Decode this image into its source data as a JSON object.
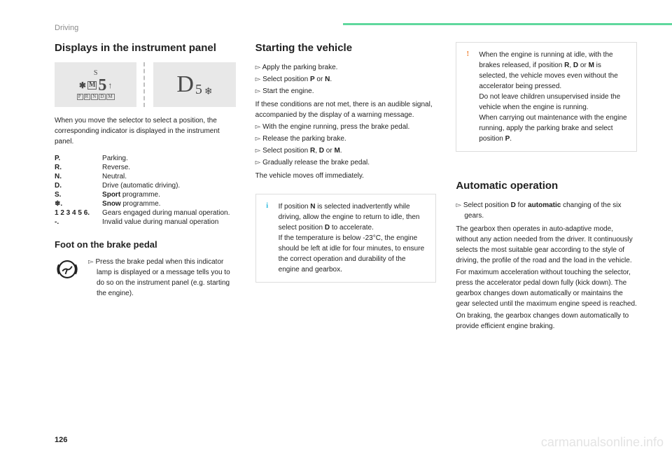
{
  "page_number": "126",
  "section_label": "Driving",
  "watermark": "carmanualsonline.info",
  "accent_green": "#5fd89d",
  "col1": {
    "h2": "Displays in the instrument panel",
    "intro": "When you move the selector to select a position, the corresponding indicator is displayed in the instrument panel.",
    "defs": [
      {
        "k": "P.",
        "v": "Parking."
      },
      {
        "k": "R.",
        "v": "Reverse."
      },
      {
        "k": "N.",
        "v": "Neutral."
      },
      {
        "k": "D.",
        "v": "Drive (automatic driving)."
      },
      {
        "k": "S.",
        "v_pre": "Sport",
        "v_post": " programme."
      },
      {
        "k": "❄.",
        "v_pre": "Snow",
        "v_post": " programme."
      },
      {
        "k": "1 2 3 4 5 6.",
        "v": "Gears engaged during manual operation."
      },
      {
        "k": "-.",
        "v": "Invalid value during manual operation"
      }
    ],
    "h3": "Foot on the brake pedal",
    "foot_text": "Press the brake pedal when this indicator lamp is displayed or a message tells you to do so on the instrument panel (e.g. starting the engine)."
  },
  "col2": {
    "h2": "Starting the vehicle",
    "steps1": [
      "Apply the parking brake.",
      "Select position <b>P</b> or <b>N</b>.",
      "Start the engine."
    ],
    "mid": "If these conditions are not met, there is an audible signal, accompanied by the display of a warning message.",
    "steps2": [
      "With the engine running, press the brake pedal.",
      "Release the parking brake.",
      "Select position <b>R</b>, <b>D</b> or <b>M</b>.",
      "Gradually release the brake pedal."
    ],
    "tail": "The vehicle moves off immediately.",
    "info_box": "If position <b>N</b> is selected inadvertently while driving, allow the engine to return to idle, then select position <b>D</b> to accelerate.<br>If the temperature is below -23°C, the engine should be left at idle for four minutes, to ensure the correct operation and durability of the engine and gearbox."
  },
  "col3": {
    "warn_box": "When the engine is running at idle, with the brakes released, if position <b>R</b>, <b>D</b> or <b>M</b> is selected, the vehicle moves even without the accelerator being pressed.<br>Do not leave children unsupervised inside the vehicle when the engine is running.<br>When carrying out maintenance with the engine running, apply the parking brake and select position <b>P</b>.",
    "h2": "Automatic operation",
    "step": "Select position <b>D</b> for <b>automatic</b> changing of the six gears.",
    "p1": "The gearbox then operates in auto-adaptive mode, without any action needed from the driver. It continuously selects the most suitable gear according to the style of driving, the profile of the road and the load in the vehicle.",
    "p2": "For maximum acceleration without touching the selector, press the accelerator pedal down fully (kick down). The gearbox changes down automatically or maintains the gear selected until the maximum engine speed is reached.",
    "p3": "On braking, the gearbox changes down automatically to provide efficient engine braking."
  }
}
